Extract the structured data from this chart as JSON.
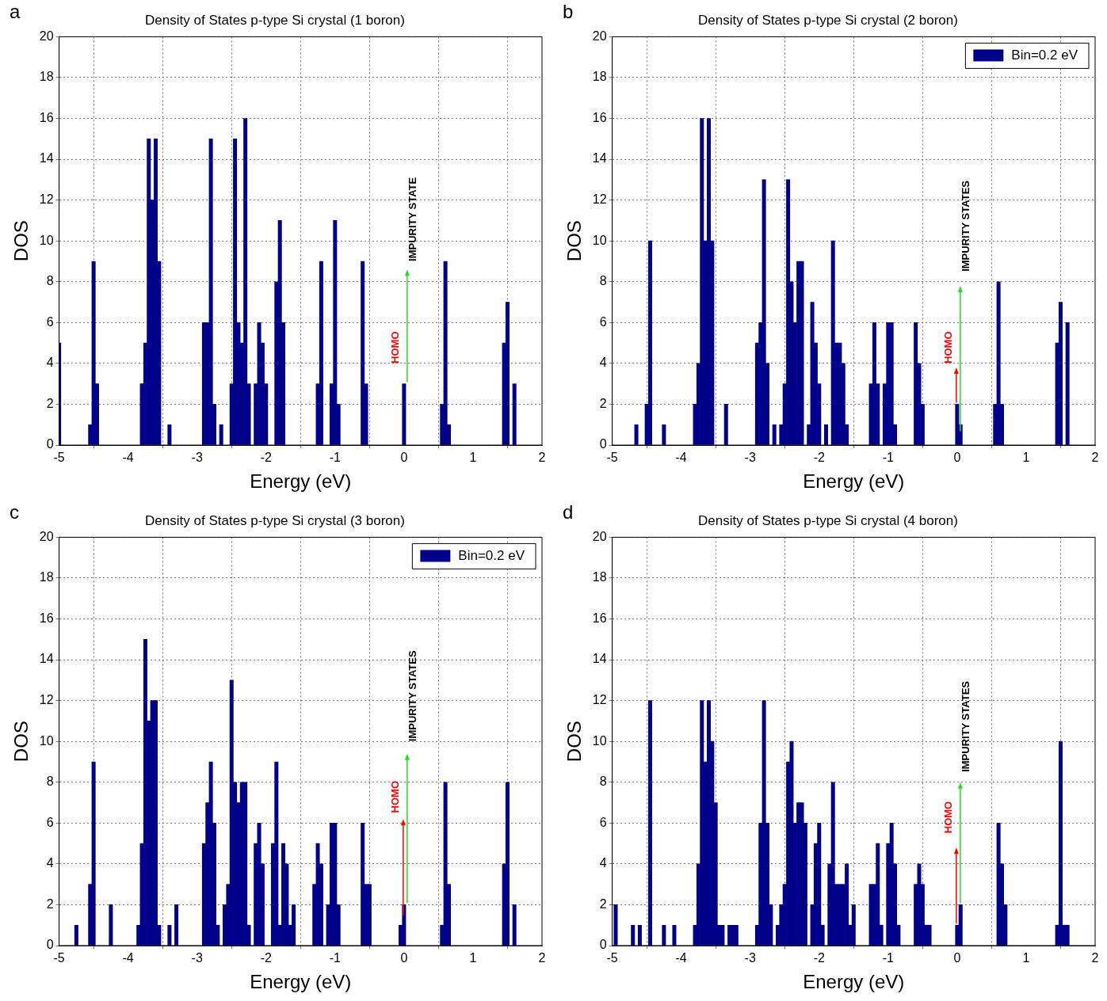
{
  "chart_data": [
    {
      "type": "bar",
      "title": "Density of States p-type Si crystal (1 boron)",
      "xlabel": "Energy (eV)",
      "ylabel": "DOS",
      "xlim": [
        -5,
        2
      ],
      "xticks": [
        -5,
        -4,
        -3,
        -2,
        -1,
        0,
        1,
        2
      ],
      "ylim": [
        0,
        20
      ],
      "yticks": [
        0,
        2,
        4,
        6,
        8,
        10,
        12,
        14,
        16,
        18,
        20
      ],
      "grid": true,
      "x": [
        -5,
        -4.55,
        -4.5,
        -4.45,
        -3.8,
        -3.75,
        -3.7,
        -3.65,
        -3.6,
        -3.55,
        -3.4,
        -2.9,
        -2.85,
        -2.8,
        -2.75,
        -2.65,
        -2.5,
        -2.45,
        -2.4,
        -2.35,
        -2.3,
        -2.25,
        -2.15,
        -2.1,
        -2.05,
        -2,
        -1.85,
        -1.8,
        -1.75,
        -1.25,
        -1.2,
        -1.05,
        -1,
        -0.95,
        -0.6,
        -0.55,
        0,
        0.55,
        0.6,
        0.65,
        1.45,
        1.5,
        1.6
      ],
      "series": [
        {
          "color": "#00008b",
          "values": [
            5,
            1,
            9,
            3,
            3,
            5,
            15,
            12,
            15,
            9,
            1,
            6,
            6,
            15,
            2,
            1,
            3,
            15,
            6,
            5,
            16,
            3,
            3,
            6,
            5,
            3,
            8,
            11,
            6,
            3,
            9,
            3,
            11,
            2,
            9,
            3,
            3,
            2,
            9,
            1,
            5,
            7,
            3
          ]
        }
      ],
      "annotations": [
        "a",
        "HOMO",
        "IMPURITY STATE"
      ]
    },
    {
      "type": "bar",
      "title": "Density of States p-type Si crystal (2 boron)",
      "xlabel": "Energy (eV)",
      "ylabel": "DOS",
      "xlim": [
        -5,
        2
      ],
      "xticks": [
        -5,
        -4,
        -3,
        -2,
        -1,
        0,
        1,
        2
      ],
      "ylim": [
        0,
        20
      ],
      "yticks": [
        0,
        2,
        4,
        6,
        8,
        10,
        12,
        14,
        16,
        18,
        20
      ],
      "grid": true,
      "legend": "top right",
      "x": [
        -4.65,
        -4.5,
        -4.45,
        -4.25,
        -3.8,
        -3.75,
        -3.7,
        -3.65,
        -3.6,
        -3.55,
        -3.35,
        -2.9,
        -2.85,
        -2.8,
        -2.75,
        -2.65,
        -2.55,
        -2.5,
        -2.45,
        -2.4,
        -2.35,
        -2.3,
        -2.25,
        -2.15,
        -2.1,
        -2.05,
        -2,
        -1.9,
        -1.8,
        -1.75,
        -1.7,
        -1.65,
        -1.6,
        -1.25,
        -1.2,
        -1.15,
        -1.05,
        -1,
        -0.95,
        -0.9,
        -0.6,
        -0.55,
        -0.5,
        0,
        0.05,
        0.55,
        0.6,
        0.65,
        1.45,
        1.5,
        1.6
      ],
      "series": [
        {
          "name": "Bin=0.2 eV",
          "color": "#00008b",
          "values": [
            1,
            2,
            10,
            1,
            2,
            4,
            16,
            10,
            16,
            10,
            2,
            5,
            6,
            13,
            4,
            1,
            1,
            3,
            13,
            8,
            6,
            9,
            9,
            1,
            7,
            5,
            3,
            1,
            10,
            5,
            5,
            4,
            1,
            3,
            6,
            3,
            3,
            6,
            6,
            1,
            6,
            4,
            2,
            2,
            1,
            2,
            8,
            2,
            5,
            7,
            6
          ]
        }
      ],
      "annotations": [
        "b",
        "HOMO",
        "IMPURITY STATES"
      ]
    },
    {
      "type": "bar",
      "title": "Density of States p-type Si crystal (3 boron)",
      "xlabel": "Energy (eV)",
      "ylabel": "DOS",
      "xlim": [
        -5,
        2
      ],
      "xticks": [
        -5,
        -4,
        -3,
        -2,
        -1,
        0,
        1,
        2
      ],
      "ylim": [
        0,
        20
      ],
      "yticks": [
        0,
        2,
        4,
        6,
        8,
        10,
        12,
        14,
        16,
        18,
        20
      ],
      "grid": true,
      "legend": "top right",
      "x": [
        -4.75,
        -4.55,
        -4.5,
        -4.25,
        -3.85,
        -3.8,
        -3.75,
        -3.7,
        -3.65,
        -3.6,
        -3.55,
        -3.4,
        -3.3,
        -2.9,
        -2.85,
        -2.8,
        -2.75,
        -2.7,
        -2.6,
        -2.55,
        -2.5,
        -2.45,
        -2.4,
        -2.35,
        -2.3,
        -2.25,
        -2.15,
        -2.1,
        -2.05,
        -1.9,
        -1.85,
        -1.8,
        -1.75,
        -1.7,
        -1.65,
        -1.6,
        -1.3,
        -1.25,
        -1.2,
        -1.1,
        -1.05,
        -1,
        -0.95,
        -0.6,
        -0.55,
        -0.5,
        -0.05,
        0,
        0.55,
        0.6,
        0.65,
        1.45,
        1.5,
        1.6
      ],
      "series": [
        {
          "name": "Bin=0.2 eV",
          "color": "#00008b",
          "values": [
            1,
            3,
            9,
            2,
            1,
            5,
            15,
            11,
            12,
            12,
            1,
            1,
            2,
            5,
            7,
            9,
            6,
            1,
            2,
            3,
            13,
            8,
            7,
            8,
            8,
            1,
            5,
            6,
            4,
            5,
            9,
            1,
            5,
            4,
            1,
            2,
            3,
            5,
            4,
            2,
            6,
            6,
            2,
            6,
            3,
            3,
            1,
            2,
            1,
            8,
            3,
            4,
            8,
            2
          ]
        }
      ],
      "annotations": [
        "c",
        "HOMO",
        "IMPURITY STATES"
      ]
    },
    {
      "type": "bar",
      "title": "Density of States p-type Si crystal (4 boron)",
      "xlabel": "Energy (eV)",
      "ylabel": "DOS",
      "xlim": [
        -5,
        2
      ],
      "xticks": [
        -5,
        -4,
        -3,
        -2,
        -1,
        0,
        1,
        2
      ],
      "ylim": [
        0,
        20
      ],
      "yticks": [
        0,
        2,
        4,
        6,
        8,
        10,
        12,
        14,
        16,
        18,
        20
      ],
      "grid": true,
      "x": [
        -4.95,
        -4.7,
        -4.6,
        -4.45,
        -4.25,
        -4.1,
        -3.8,
        -3.75,
        -3.7,
        -3.65,
        -3.6,
        -3.55,
        -3.5,
        -3.45,
        -3.4,
        -3.3,
        -3.25,
        -3.2,
        -2.9,
        -2.85,
        -2.8,
        -2.75,
        -2.7,
        -2.6,
        -2.55,
        -2.5,
        -2.45,
        -2.4,
        -2.35,
        -2.3,
        -2.25,
        -2.2,
        -2.1,
        -2.05,
        -2,
        -1.95,
        -1.85,
        -1.8,
        -1.75,
        -1.7,
        -1.65,
        -1.6,
        -1.55,
        -1.5,
        -1.25,
        -1.2,
        -1.15,
        -1.1,
        -1,
        -0.95,
        -0.9,
        -0.85,
        -0.6,
        -0.55,
        -0.5,
        -0.45,
        -0.4,
        0,
        0.05,
        0.6,
        0.65,
        0.7,
        1.45,
        1.5,
        1.55,
        1.6
      ],
      "series": [
        {
          "color": "#00008b",
          "values": [
            2,
            1,
            1,
            12,
            1,
            1,
            1,
            4,
            12,
            9,
            12,
            10,
            7,
            1,
            1,
            1,
            1,
            1,
            1,
            6,
            12,
            6,
            2,
            1,
            2,
            3,
            9,
            10,
            6,
            7,
            7,
            6,
            2,
            5,
            6,
            1,
            4,
            8,
            3,
            3,
            3,
            4,
            1,
            2,
            3,
            3,
            5,
            1,
            5,
            6,
            4,
            1,
            3,
            4,
            3,
            1,
            1,
            1,
            2,
            6,
            4,
            2,
            1,
            10,
            1,
            1
          ]
        }
      ],
      "annotations": [
        "d",
        "HOMO",
        "IMPURITY STATES"
      ]
    }
  ]
}
